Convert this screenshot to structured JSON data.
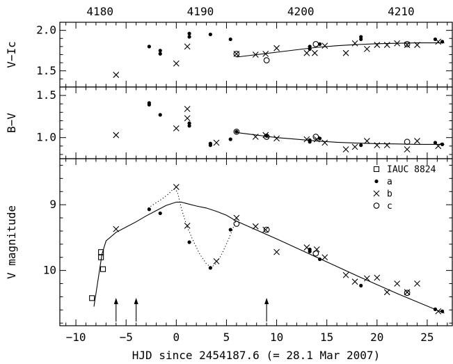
{
  "chart_data": {
    "type": "scatter",
    "top_axis": {
      "label": "",
      "ticks": [
        "4180",
        "4190",
        "4200",
        "4210"
      ],
      "tick_values": [
        4180,
        4190,
        4200,
        4210
      ]
    },
    "x_axis": {
      "label": "HJD since 2454187.6 (= 28.1 Mar 2007)",
      "range": [
        -11.6,
        27.5
      ],
      "ticks": [
        "−10",
        "−5",
        "0",
        "5",
        "10",
        "15",
        "20",
        "25"
      ],
      "tick_values": [
        -10,
        -5,
        0,
        5,
        10,
        15,
        20,
        25
      ]
    },
    "arrows_at_x": [
      -6.0,
      -4.0,
      9.0
    ],
    "panels": [
      {
        "id": "vic",
        "ylabel": "V−Ic",
        "ylim": [
          1.3,
          2.1
        ],
        "ticks": [
          "1.5",
          "2.0"
        ],
        "tick_values": [
          1.5,
          2.0
        ],
        "fit_curve": [
          [
            6,
            1.67
          ],
          [
            8,
            1.7
          ],
          [
            10,
            1.73
          ],
          [
            12,
            1.76
          ],
          [
            14,
            1.79
          ],
          [
            16,
            1.81
          ],
          [
            18,
            1.825
          ],
          [
            20,
            1.835
          ],
          [
            22,
            1.84
          ],
          [
            24,
            1.845
          ],
          [
            26,
            1.845
          ],
          [
            26.7,
            1.845
          ]
        ],
        "series": {
          "a": [
            [
              -2.7,
              1.8
            ],
            [
              -1.6,
              1.75
            ],
            [
              -1.6,
              1.71
            ],
            [
              1.3,
              1.92
            ],
            [
              1.3,
              1.96
            ],
            [
              3.4,
              1.95
            ],
            [
              5.4,
              1.89
            ],
            [
              13.3,
              1.8
            ],
            [
              13.3,
              1.77
            ],
            [
              14.3,
              1.83
            ],
            [
              18.4,
              1.92
            ],
            [
              18.4,
              1.89
            ],
            [
              25.8,
              1.89
            ],
            [
              26.5,
              1.86
            ]
          ],
          "b": [
            [
              -6.0,
              1.45
            ],
            [
              0.0,
              1.59
            ],
            [
              1.1,
              1.8
            ],
            [
              6.0,
              1.71
            ],
            [
              7.9,
              1.7
            ],
            [
              8.9,
              1.71
            ],
            [
              10.0,
              1.78
            ],
            [
              13.0,
              1.72
            ],
            [
              13.8,
              1.72
            ],
            [
              14.8,
              1.81
            ],
            [
              16.9,
              1.72
            ],
            [
              17.8,
              1.84
            ],
            [
              19.0,
              1.77
            ],
            [
              20.0,
              1.82
            ],
            [
              21.0,
              1.82
            ],
            [
              22.0,
              1.84
            ],
            [
              23.0,
              1.82
            ],
            [
              24.0,
              1.82
            ],
            [
              26.1,
              1.86
            ]
          ],
          "c": [
            [
              6.0,
              1.71
            ],
            [
              9.0,
              1.63
            ],
            [
              13.9,
              1.83
            ],
            [
              23.0,
              1.83
            ]
          ]
        }
      },
      {
        "id": "bv",
        "ylabel": "B−V",
        "ylim": [
          0.75,
          1.6
        ],
        "ticks": [
          "1.0",
          "1.5"
        ],
        "tick_values": [
          1.0,
          1.5
        ],
        "fit_curve": [
          [
            6,
            1.06
          ],
          [
            8,
            1.03
          ],
          [
            10,
            1.0
          ],
          [
            12,
            0.98
          ],
          [
            14,
            0.96
          ],
          [
            16,
            0.945
          ],
          [
            18,
            0.935
          ],
          [
            20,
            0.928
          ],
          [
            22,
            0.925
          ],
          [
            24,
            0.92
          ],
          [
            26.7,
            0.92
          ]
        ],
        "series": {
          "a": [
            [
              -2.7,
              1.41
            ],
            [
              -2.7,
              1.39
            ],
            [
              -1.6,
              1.27
            ],
            [
              1.3,
              1.17
            ],
            [
              1.3,
              1.14
            ],
            [
              3.4,
              0.93
            ],
            [
              3.4,
              0.91
            ],
            [
              5.4,
              0.98
            ],
            [
              6.0,
              1.07
            ],
            [
              9.0,
              1.02
            ],
            [
              13.3,
              0.97
            ],
            [
              13.3,
              0.95
            ],
            [
              14.3,
              0.99
            ],
            [
              18.4,
              0.91
            ],
            [
              25.8,
              0.94
            ],
            [
              26.5,
              0.92
            ]
          ],
          "b": [
            [
              -6.0,
              1.03
            ],
            [
              0.0,
              1.11
            ],
            [
              1.1,
              1.34
            ],
            [
              1.1,
              1.23
            ],
            [
              4.0,
              0.94
            ],
            [
              7.9,
              1.01
            ],
            [
              8.9,
              1.03
            ],
            [
              10.0,
              0.99
            ],
            [
              13.0,
              0.98
            ],
            [
              14.0,
              0.98
            ],
            [
              14.8,
              0.94
            ],
            [
              16.9,
              0.86
            ],
            [
              17.8,
              0.89
            ],
            [
              19.0,
              0.96
            ],
            [
              20.0,
              0.91
            ],
            [
              21.0,
              0.91
            ],
            [
              23.0,
              0.86
            ],
            [
              24.0,
              0.96
            ],
            [
              26.1,
              0.9
            ]
          ],
          "c": [
            [
              6.0,
              1.07
            ],
            [
              9.0,
              1.01
            ],
            [
              13.9,
              1.01
            ],
            [
              23.0,
              0.95
            ]
          ]
        }
      },
      {
        "id": "v",
        "ylabel": "V magnitude",
        "ylim": [
          10.84,
          8.3
        ],
        "inverted": true,
        "ticks": [
          "9",
          "10"
        ],
        "tick_values": [
          9,
          10
        ],
        "legend": {
          "position": "top-right",
          "entries": [
            {
              "name": "IAUC 8824",
              "marker": "square"
            },
            {
              "name": "a",
              "marker": "dot"
            },
            {
              "name": "b",
              "marker": "cross"
            },
            {
              "name": "c",
              "marker": "circle"
            }
          ]
        },
        "solid_curve_rise": [
          [
            -8.2,
            10.55
          ],
          [
            -7.8,
            10.15
          ],
          [
            -7.4,
            9.75
          ],
          [
            -7.0,
            9.55
          ],
          [
            -6.0,
            9.42
          ],
          [
            -5.0,
            9.34
          ],
          [
            -4.0,
            9.26
          ],
          [
            -3.0,
            9.17
          ],
          [
            -2.0,
            9.09
          ],
          [
            -1.0,
            9.01
          ],
          [
            0.0,
            8.96
          ],
          [
            0.5,
            8.96
          ],
          [
            1.0,
            8.98
          ],
          [
            2.0,
            9.02
          ],
          [
            3.0,
            9.05
          ],
          [
            4.0,
            9.1
          ],
          [
            5.0,
            9.16
          ],
          [
            6.0,
            9.25
          ]
        ],
        "solid_curve_decline": [
          [
            6.0,
            9.25
          ],
          [
            10.0,
            9.52
          ],
          [
            14.0,
            9.8
          ],
          [
            18.0,
            10.08
          ],
          [
            22.0,
            10.35
          ],
          [
            26.7,
            10.65
          ]
        ],
        "dotted_curve": [
          [
            -2.8,
            9.05
          ],
          [
            -1.5,
            8.92
          ],
          [
            -0.8,
            8.84
          ],
          [
            -0.3,
            8.76
          ],
          [
            0.1,
            8.8
          ],
          [
            0.5,
            9.05
          ],
          [
            1.0,
            9.3
          ],
          [
            1.6,
            9.52
          ],
          [
            2.3,
            9.74
          ],
          [
            3.0,
            9.9
          ],
          [
            3.5,
            9.95
          ],
          [
            4.0,
            9.89
          ],
          [
            4.6,
            9.73
          ],
          [
            5.2,
            9.53
          ],
          [
            5.8,
            9.3
          ],
          [
            6.2,
            9.16
          ]
        ],
        "series": {
          "IAUC 8824": [
            [
              -8.4,
              10.42
            ],
            [
              -7.5,
              9.72
            ],
            [
              -7.5,
              9.8
            ],
            [
              -7.3,
              9.98
            ]
          ],
          "a": [
            [
              -2.7,
              9.07
            ],
            [
              -1.6,
              9.13
            ],
            [
              1.3,
              9.57
            ],
            [
              3.4,
              9.96
            ],
            [
              5.4,
              9.38
            ],
            [
              13.3,
              9.71
            ],
            [
              13.3,
              9.68
            ],
            [
              14.3,
              9.83
            ],
            [
              18.4,
              10.23
            ],
            [
              25.8,
              10.59
            ],
            [
              26.5,
              10.62
            ]
          ],
          "b": [
            [
              -6.0,
              9.37
            ],
            [
              0.0,
              8.73
            ],
            [
              1.1,
              9.32
            ],
            [
              4.0,
              9.86
            ],
            [
              6.0,
              9.2
            ],
            [
              7.9,
              9.33
            ],
            [
              8.9,
              9.38
            ],
            [
              10.0,
              9.72
            ],
            [
              13.0,
              9.65
            ],
            [
              14.0,
              9.68
            ],
            [
              14.8,
              9.8
            ],
            [
              16.9,
              10.07
            ],
            [
              17.8,
              10.17
            ],
            [
              19.0,
              10.12
            ],
            [
              20.0,
              10.11
            ],
            [
              21.0,
              10.33
            ],
            [
              22.0,
              10.2
            ],
            [
              23.0,
              10.33
            ],
            [
              24.0,
              10.2
            ],
            [
              26.1,
              10.62
            ]
          ],
          "c": [
            [
              6.0,
              9.29
            ],
            [
              9.0,
              9.38
            ],
            [
              13.9,
              9.74
            ],
            [
              23.0,
              10.34
            ]
          ]
        }
      }
    ]
  }
}
